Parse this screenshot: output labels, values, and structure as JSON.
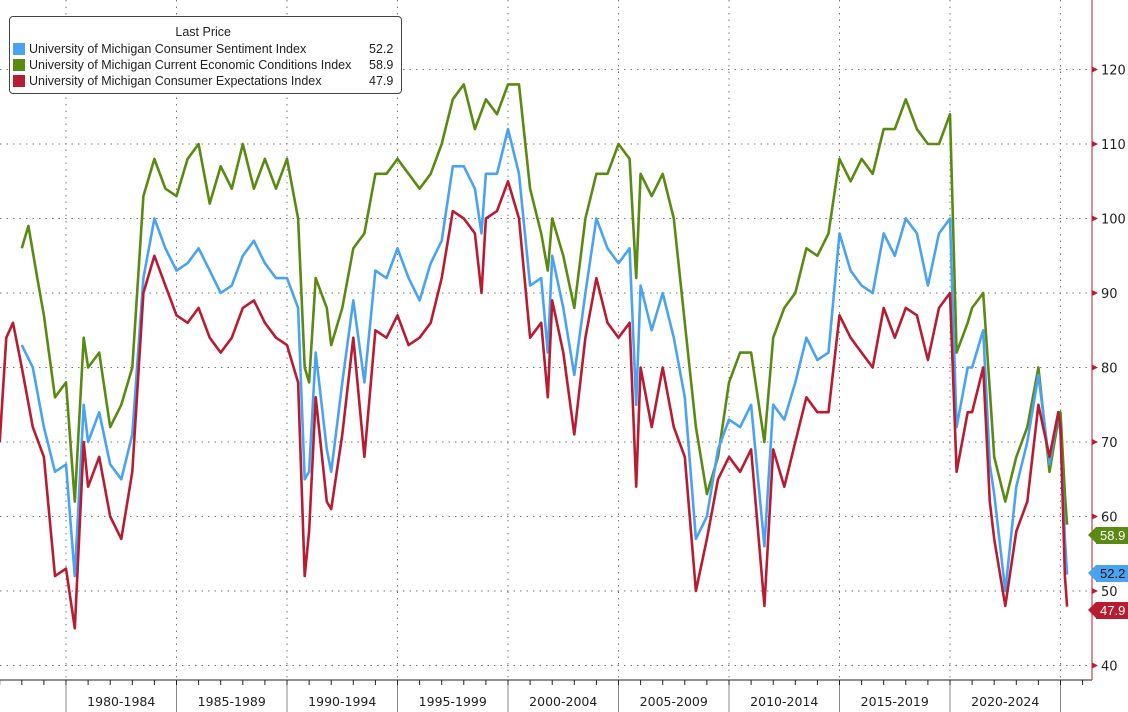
{
  "chart_data": {
    "type": "line",
    "legend_title": "Last Price",
    "legend_position": "top-left",
    "y_axis_side": "right",
    "ylim": [
      38,
      130
    ],
    "yticks": [
      40,
      50,
      60,
      70,
      80,
      90,
      100,
      110,
      120
    ],
    "x_unit": "year",
    "xlim": [
      1977.0,
      2026.4
    ],
    "x_period_boundaries": [
      1980,
      1985,
      1990,
      1995,
      2000,
      2005,
      2010,
      2015,
      2020,
      2025
    ],
    "x_tick_labels": [
      "1980-1984",
      "1985-1989",
      "1990-1994",
      "1995-1999",
      "2000-2004",
      "2005-2009",
      "2010-2014",
      "2015-2019",
      "2020-2024"
    ],
    "grid": true,
    "series": [
      {
        "name": "University of Michigan Consumer Sentiment Index",
        "last": "52.2",
        "color": "#4aa3f0",
        "x": [
          1978.0,
          1978.5,
          1979.0,
          1979.5,
          1980.0,
          1980.4,
          1980.8,
          1981.0,
          1981.5,
          1982.0,
          1982.5,
          1983.0,
          1983.5,
          1984.0,
          1984.5,
          1985.0,
          1985.5,
          1986.0,
          1986.5,
          1987.0,
          1987.5,
          1988.0,
          1988.5,
          1989.0,
          1989.5,
          1990.0,
          1990.5,
          1990.8,
          1991.0,
          1991.3,
          1991.8,
          1992.0,
          1992.5,
          1993.0,
          1993.5,
          1994.0,
          1994.5,
          1995.0,
          1995.5,
          1996.0,
          1996.5,
          1997.0,
          1997.5,
          1998.0,
          1998.5,
          1998.8,
          1999.0,
          1999.5,
          2000.0,
          2000.5,
          2001.0,
          2001.5,
          2001.8,
          2002.0,
          2002.5,
          2003.0,
          2003.5,
          2004.0,
          2004.5,
          2005.0,
          2005.5,
          2005.8,
          2006.0,
          2006.5,
          2007.0,
          2007.5,
          2008.0,
          2008.5,
          2009.0,
          2009.5,
          2010.0,
          2010.5,
          2011.0,
          2011.6,
          2012.0,
          2012.5,
          2013.0,
          2013.5,
          2014.0,
          2014.5,
          2015.0,
          2015.5,
          2016.0,
          2016.5,
          2017.0,
          2017.5,
          2018.0,
          2018.5,
          2019.0,
          2019.5,
          2020.0,
          2020.3,
          2020.8,
          2021.0,
          2021.5,
          2021.8,
          2022.0,
          2022.5,
          2023.0,
          2023.5,
          2024.0,
          2024.5,
          2024.9,
          2025.0,
          2025.2,
          2025.3
        ],
        "values": [
          83,
          80,
          72,
          66,
          67,
          52,
          75,
          70,
          74,
          67,
          65,
          71,
          92,
          100,
          96,
          93,
          94,
          96,
          93,
          90,
          91,
          95,
          97,
          94,
          92,
          92,
          88,
          65,
          66,
          82,
          69,
          66,
          78,
          89,
          78,
          93,
          92,
          96,
          92,
          89,
          94,
          97,
          107,
          107,
          104,
          98,
          106,
          106,
          112,
          106,
          91,
          92,
          82,
          95,
          88,
          79,
          90,
          100,
          96,
          94,
          96,
          75,
          91,
          85,
          90,
          84,
          76,
          57,
          60,
          69,
          73,
          72,
          75,
          56,
          75,
          73,
          78,
          84,
          81,
          82,
          98,
          93,
          91,
          90,
          98,
          95,
          100,
          98,
          91,
          98,
          100,
          72,
          80,
          80,
          85,
          67,
          63,
          50,
          64,
          70,
          79,
          67,
          74,
          71,
          57,
          52.2
        ]
      },
      {
        "name": "University of Michigan Current Economic Conditions Index",
        "last": "58.9",
        "color": "#5a8a12",
        "x": [
          1978.0,
          1978.3,
          1978.7,
          1979.0,
          1979.5,
          1980.0,
          1980.4,
          1980.8,
          1981.0,
          1981.5,
          1982.0,
          1982.5,
          1983.0,
          1983.5,
          1984.0,
          1984.5,
          1985.0,
          1985.5,
          1986.0,
          1986.5,
          1987.0,
          1987.5,
          1988.0,
          1988.5,
          1989.0,
          1989.5,
          1990.0,
          1990.5,
          1990.8,
          1991.0,
          1991.3,
          1991.8,
          1992.0,
          1992.5,
          1993.0,
          1993.5,
          1994.0,
          1994.5,
          1995.0,
          1995.5,
          1996.0,
          1996.5,
          1997.0,
          1997.5,
          1998.0,
          1998.5,
          1999.0,
          1999.5,
          2000.0,
          2000.5,
          2001.0,
          2001.5,
          2001.8,
          2002.0,
          2002.5,
          2003.0,
          2003.5,
          2004.0,
          2004.5,
          2005.0,
          2005.5,
          2005.8,
          2006.0,
          2006.5,
          2007.0,
          2007.5,
          2008.0,
          2008.5,
          2009.0,
          2009.5,
          2010.0,
          2010.5,
          2011.0,
          2011.6,
          2012.0,
          2012.5,
          2013.0,
          2013.5,
          2014.0,
          2014.5,
          2015.0,
          2015.5,
          2016.0,
          2016.5,
          2017.0,
          2017.5,
          2018.0,
          2018.5,
          2019.0,
          2019.5,
          2020.0,
          2020.3,
          2020.8,
          2021.0,
          2021.5,
          2021.8,
          2022.0,
          2022.5,
          2023.0,
          2023.5,
          2024.0,
          2024.5,
          2024.9,
          2025.0,
          2025.2,
          2025.3
        ],
        "values": [
          96,
          99,
          92,
          87,
          76,
          78,
          62,
          84,
          80,
          82,
          72,
          75,
          80,
          103,
          108,
          104,
          103,
          108,
          110,
          102,
          107,
          104,
          110,
          104,
          108,
          104,
          108,
          100,
          80,
          78,
          92,
          88,
          83,
          88,
          96,
          98,
          106,
          106,
          108,
          106,
          104,
          106,
          110,
          116,
          118,
          112,
          116,
          114,
          118,
          118,
          104,
          98,
          93,
          100,
          95,
          88,
          100,
          106,
          106,
          110,
          108,
          92,
          106,
          103,
          106,
          100,
          86,
          72,
          63,
          68,
          78,
          82,
          82,
          70,
          84,
          88,
          90,
          96,
          95,
          98,
          108,
          105,
          108,
          106,
          112,
          112,
          116,
          112,
          110,
          110,
          114,
          82,
          86,
          88,
          90,
          77,
          68,
          62,
          68,
          72,
          80,
          66,
          73,
          74,
          63,
          58.9
        ]
      },
      {
        "name": "University of Michigan Consumer Expectations Index",
        "last": "47.9",
        "color": "#b81c32",
        "x": [
          1977.0,
          1977.3,
          1977.6,
          1978.0,
          1978.5,
          1979.0,
          1979.5,
          1980.0,
          1980.4,
          1980.8,
          1981.0,
          1981.5,
          1982.0,
          1982.5,
          1983.0,
          1983.5,
          1984.0,
          1984.5,
          1985.0,
          1985.5,
          1986.0,
          1986.5,
          1987.0,
          1987.5,
          1988.0,
          1988.5,
          1989.0,
          1989.5,
          1990.0,
          1990.5,
          1990.8,
          1991.0,
          1991.3,
          1991.8,
          1992.0,
          1992.5,
          1993.0,
          1993.5,
          1994.0,
          1994.5,
          1995.0,
          1995.5,
          1996.0,
          1996.5,
          1997.0,
          1997.5,
          1998.0,
          1998.5,
          1998.8,
          1999.0,
          1999.5,
          2000.0,
          2000.5,
          2001.0,
          2001.5,
          2001.8,
          2002.0,
          2002.5,
          2003.0,
          2003.5,
          2004.0,
          2004.5,
          2005.0,
          2005.5,
          2005.8,
          2006.0,
          2006.5,
          2007.0,
          2007.5,
          2008.0,
          2008.5,
          2009.0,
          2009.5,
          2010.0,
          2010.5,
          2011.0,
          2011.6,
          2012.0,
          2012.5,
          2013.0,
          2013.5,
          2014.0,
          2014.5,
          2015.0,
          2015.5,
          2016.0,
          2016.5,
          2017.0,
          2017.5,
          2018.0,
          2018.5,
          2019.0,
          2019.5,
          2020.0,
          2020.3,
          2020.8,
          2021.0,
          2021.5,
          2021.8,
          2022.0,
          2022.5,
          2023.0,
          2023.5,
          2024.0,
          2024.5,
          2024.9,
          2025.0,
          2025.2,
          2025.3
        ],
        "values": [
          70,
          84,
          86,
          80,
          72,
          68,
          52,
          53,
          45,
          70,
          64,
          68,
          60,
          57,
          66,
          90,
          95,
          91,
          87,
          86,
          88,
          84,
          82,
          84,
          88,
          89,
          86,
          84,
          83,
          78,
          52,
          58,
          76,
          62,
          61,
          71,
          84,
          68,
          85,
          84,
          87,
          83,
          84,
          86,
          92,
          101,
          100,
          98,
          90,
          100,
          101,
          105,
          100,
          84,
          86,
          76,
          89,
          82,
          71,
          84,
          92,
          86,
          84,
          86,
          64,
          80,
          72,
          80,
          72,
          68,
          50,
          57,
          65,
          68,
          66,
          69,
          48,
          69,
          64,
          70,
          76,
          74,
          74,
          87,
          84,
          82,
          80,
          88,
          84,
          88,
          87,
          81,
          88,
          90,
          66,
          74,
          74,
          80,
          62,
          57,
          48,
          58,
          62,
          75,
          68,
          74,
          72,
          52,
          47.9
        ]
      }
    ]
  }
}
